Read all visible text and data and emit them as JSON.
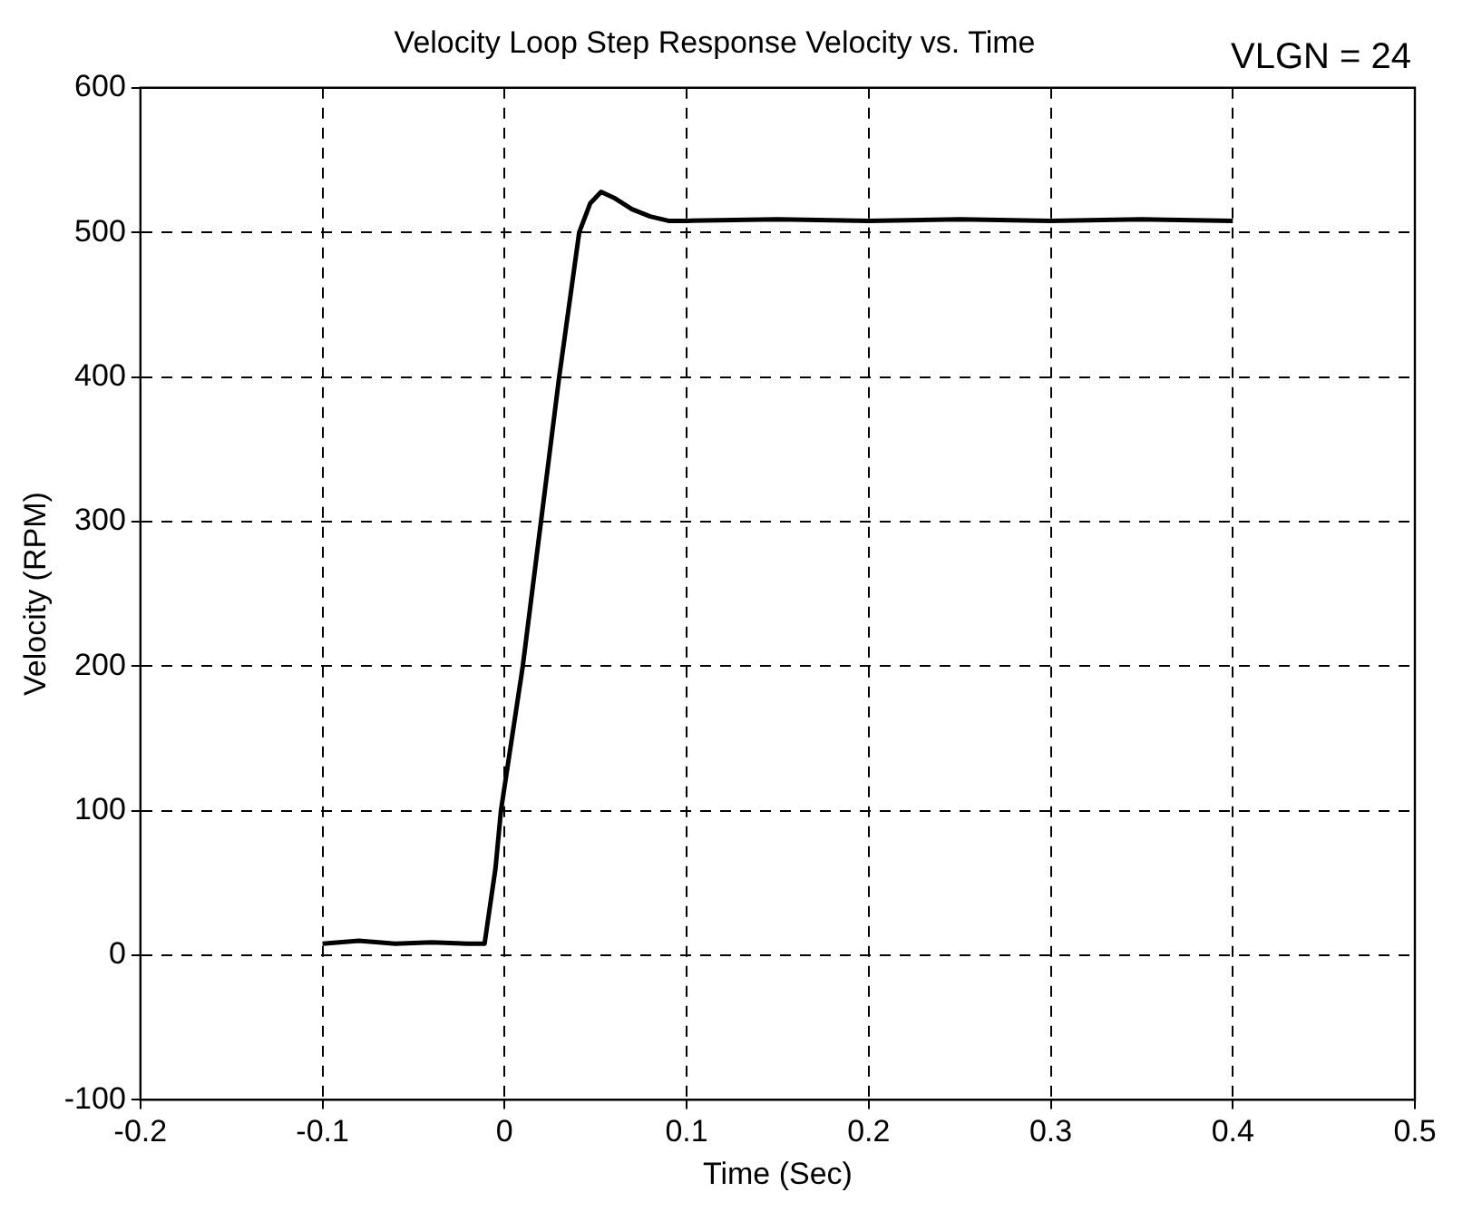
{
  "chart_data": {
    "type": "line",
    "title": "Velocity Loop Step Response Velocity vs. Time",
    "xlabel": "Time (Sec)",
    "ylabel": "Velocity (RPM)",
    "annotations": [
      "VLGN = 24"
    ],
    "series": [
      {
        "color": "#000000",
        "x": [
          -0.1,
          -0.08,
          -0.06,
          -0.04,
          -0.02,
          -0.011,
          -0.005,
          -0.002,
          0.01,
          0.02,
          0.03,
          0.041,
          0.047,
          0.053,
          0.06,
          0.07,
          0.08,
          0.09,
          0.1,
          0.15,
          0.2,
          0.25,
          0.3,
          0.35,
          0.4
        ],
        "values": [
          8,
          10,
          8,
          9,
          8,
          8,
          60,
          100,
          200,
          300,
          400,
          500,
          520,
          528,
          524,
          516,
          511,
          508,
          508,
          509,
          508,
          509,
          508,
          509,
          508
        ]
      }
    ],
    "xlim": [
      -0.2,
      0.5
    ],
    "xticks": [
      -0.2,
      -0.1,
      0,
      0.1,
      0.2,
      0.3,
      0.4,
      0.5
    ],
    "ylim": [
      -100,
      600
    ],
    "yticks": [
      -100,
      0,
      100,
      200,
      300,
      400,
      500,
      600
    ],
    "grid": true,
    "legend": false,
    "marker": "none",
    "line_style": "solid"
  }
}
